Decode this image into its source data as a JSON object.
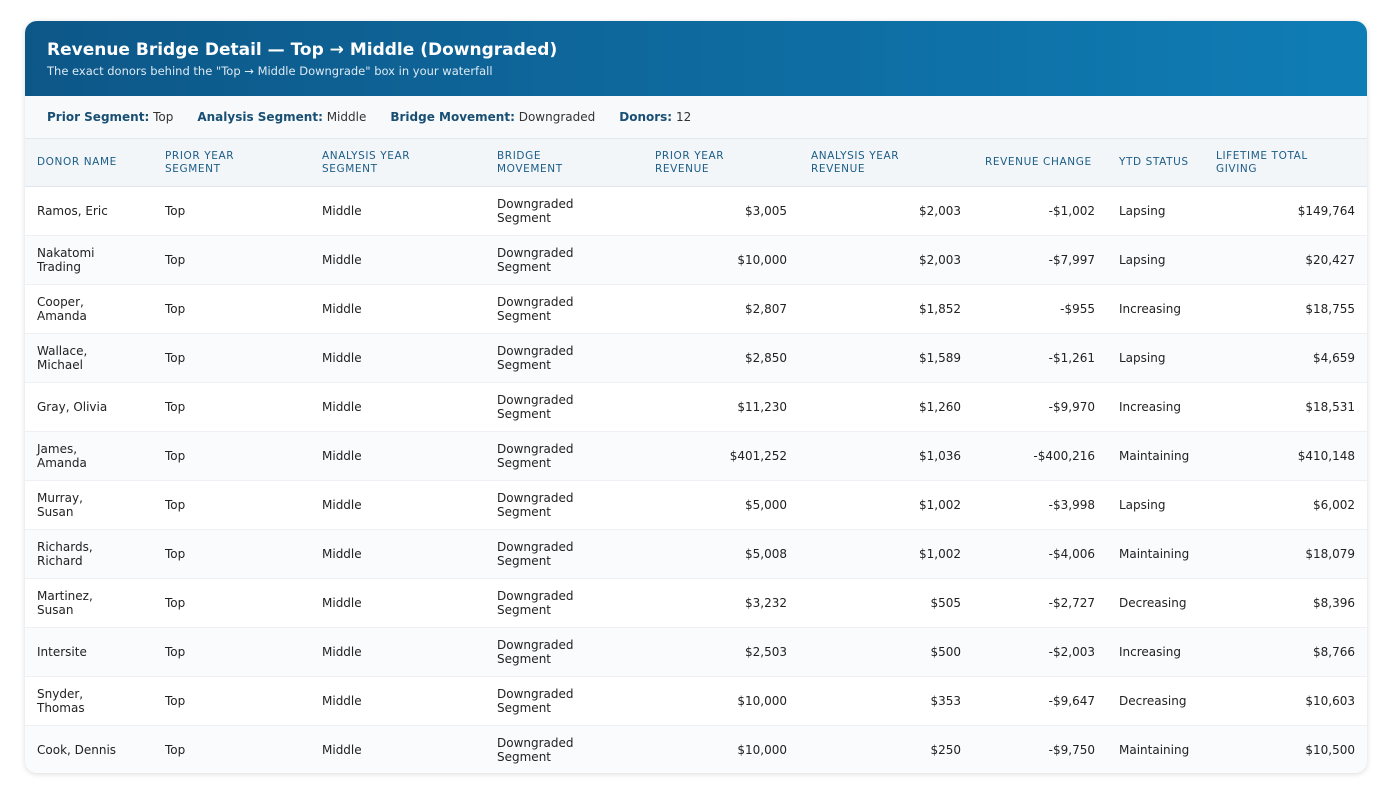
{
  "header": {
    "title": "Revenue Bridge Detail — Top → Middle (Downgraded)",
    "subtitle": "The exact donors behind the \"Top → Middle Downgrade\" box in your waterfall"
  },
  "filters": [
    {
      "label": "Prior Segment:",
      "value": "Top"
    },
    {
      "label": "Analysis Segment:",
      "value": "Middle"
    },
    {
      "label": "Bridge Movement:",
      "value": "Downgraded"
    },
    {
      "label": "Donors:",
      "value": "12"
    }
  ],
  "table": {
    "columns": [
      "DONOR NAME",
      "PRIOR YEAR SEGMENT",
      "ANALYSIS YEAR SEGMENT",
      "BRIDGE MOVEMENT",
      "PRIOR YEAR REVENUE",
      "ANALYSIS YEAR REVENUE",
      "REVENUE CHANGE",
      "YTD STATUS",
      "LIFETIME TOTAL GIVING"
    ],
    "rows": [
      [
        "Ramos, Eric",
        "Top",
        "Middle",
        "Downgraded Segment",
        "$3,005",
        "$2,003",
        "-$1,002",
        "Lapsing",
        "$149,764"
      ],
      [
        "Nakatomi Trading",
        "Top",
        "Middle",
        "Downgraded Segment",
        "$10,000",
        "$2,003",
        "-$7,997",
        "Lapsing",
        "$20,427"
      ],
      [
        "Cooper, Amanda",
        "Top",
        "Middle",
        "Downgraded Segment",
        "$2,807",
        "$1,852",
        "-$955",
        "Increasing",
        "$18,755"
      ],
      [
        "Wallace, Michael",
        "Top",
        "Middle",
        "Downgraded Segment",
        "$2,850",
        "$1,589",
        "-$1,261",
        "Lapsing",
        "$4,659"
      ],
      [
        "Gray, Olivia",
        "Top",
        "Middle",
        "Downgraded Segment",
        "$11,230",
        "$1,260",
        "-$9,970",
        "Increasing",
        "$18,531"
      ],
      [
        "James, Amanda",
        "Top",
        "Middle",
        "Downgraded Segment",
        "$401,252",
        "$1,036",
        "-$400,216",
        "Maintaining",
        "$410,148"
      ],
      [
        "Murray, Susan",
        "Top",
        "Middle",
        "Downgraded Segment",
        "$5,000",
        "$1,002",
        "-$3,998",
        "Lapsing",
        "$6,002"
      ],
      [
        "Richards, Richard",
        "Top",
        "Middle",
        "Downgraded Segment",
        "$5,008",
        "$1,002",
        "-$4,006",
        "Maintaining",
        "$18,079"
      ],
      [
        "Martinez, Susan",
        "Top",
        "Middle",
        "Downgraded Segment",
        "$3,232",
        "$505",
        "-$2,727",
        "Decreasing",
        "$8,396"
      ],
      [
        "Intersite",
        "Top",
        "Middle",
        "Downgraded Segment",
        "$2,503",
        "$500",
        "-$2,003",
        "Increasing",
        "$8,766"
      ],
      [
        "Snyder, Thomas",
        "Top",
        "Middle",
        "Downgraded Segment",
        "$10,000",
        "$353",
        "-$9,647",
        "Decreasing",
        "$10,603"
      ],
      [
        "Cook, Dennis",
        "Top",
        "Middle",
        "Downgraded Segment",
        "$10,000",
        "$250",
        "-$9,750",
        "Maintaining",
        "$10,500"
      ]
    ]
  }
}
